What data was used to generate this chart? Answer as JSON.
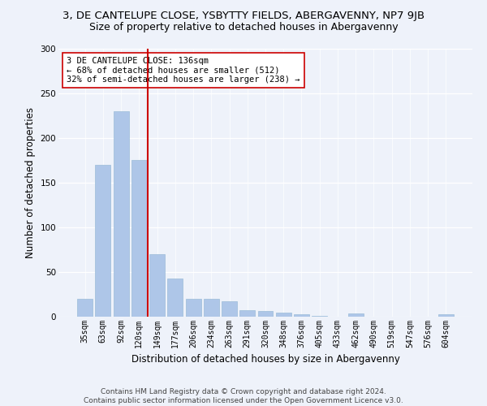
{
  "title": "3, DE CANTELUPE CLOSE, YSBYTTY FIELDS, ABERGAVENNY, NP7 9JB",
  "subtitle": "Size of property relative to detached houses in Abergavenny",
  "xlabel": "Distribution of detached houses by size in Abergavenny",
  "ylabel": "Number of detached properties",
  "categories": [
    "35sqm",
    "63sqm",
    "92sqm",
    "120sqm",
    "149sqm",
    "177sqm",
    "206sqm",
    "234sqm",
    "263sqm",
    "291sqm",
    "320sqm",
    "348sqm",
    "376sqm",
    "405sqm",
    "433sqm",
    "462sqm",
    "490sqm",
    "519sqm",
    "547sqm",
    "576sqm",
    "604sqm"
  ],
  "values": [
    20,
    170,
    230,
    175,
    70,
    43,
    20,
    20,
    17,
    7,
    6,
    5,
    3,
    1,
    0,
    4,
    0,
    0,
    0,
    0,
    3
  ],
  "bar_color": "#AEC6E8",
  "bar_edgecolor": "#9BBCD8",
  "vline_x": 3.5,
  "vline_color": "#CC0000",
  "annotation_text": "3 DE CANTELUPE CLOSE: 136sqm\n← 68% of detached houses are smaller (512)\n32% of semi-detached houses are larger (238) →",
  "annotation_box_color": "#ffffff",
  "annotation_box_edgecolor": "#CC0000",
  "ylim": [
    0,
    300
  ],
  "yticks": [
    0,
    50,
    100,
    150,
    200,
    250,
    300
  ],
  "background_color": "#eef2fa",
  "footer_text": "Contains HM Land Registry data © Crown copyright and database right 2024.\nContains public sector information licensed under the Open Government Licence v3.0.",
  "title_fontsize": 9.5,
  "subtitle_fontsize": 9,
  "tick_fontsize": 7,
  "label_fontsize": 8.5,
  "annotation_fontsize": 7.5,
  "footer_fontsize": 6.5
}
